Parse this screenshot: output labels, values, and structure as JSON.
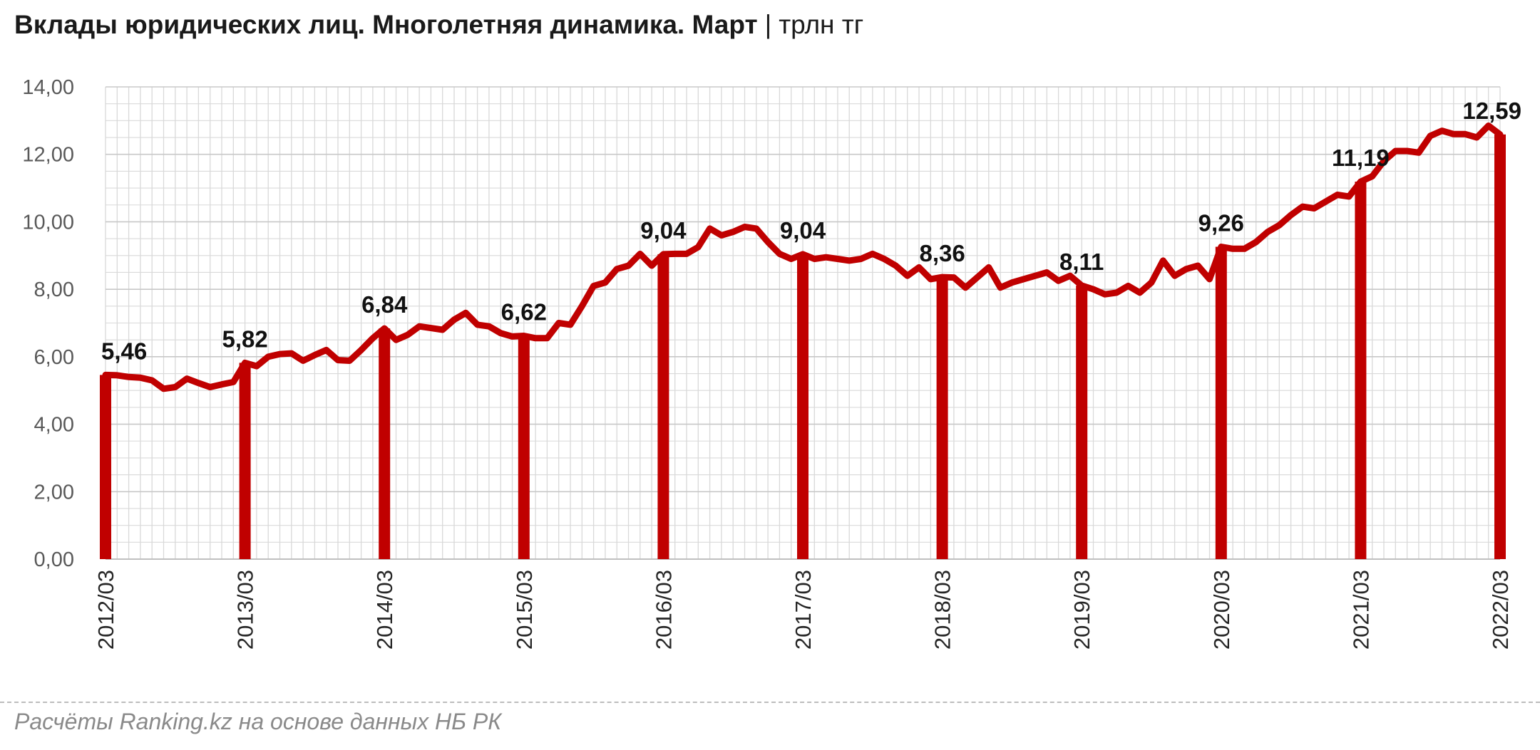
{
  "chart_data": {
    "type": "line",
    "title": "Вклады юридических лиц. Многолетняя динамика. Март",
    "separator": "|",
    "unit": "трлн тг",
    "ylim": [
      0,
      14
    ],
    "yticks": [
      "0,00",
      "2,00",
      "4,00",
      "6,00",
      "8,00",
      "10,00",
      "12,00",
      "14,00"
    ],
    "grid": true,
    "legend": "none",
    "colors": {
      "line": "#c00000",
      "bars": "#c00000",
      "grid": "#d9d9d9"
    },
    "x_tick_labels": [
      "2012/03",
      "2013/03",
      "2014/03",
      "2015/03",
      "2016/03",
      "2017/03",
      "2018/03",
      "2019/03",
      "2020/03",
      "2021/03",
      "2022/03"
    ],
    "bars": {
      "categories": [
        "2012/03",
        "2013/03",
        "2014/03",
        "2015/03",
        "2016/03",
        "2017/03",
        "2018/03",
        "2019/03",
        "2020/03",
        "2021/03",
        "2022/03"
      ],
      "values": [
        5.46,
        5.82,
        6.84,
        6.62,
        9.04,
        9.04,
        8.36,
        8.11,
        9.26,
        11.19,
        12.59
      ],
      "labels": [
        "5,46",
        "5,82",
        "6,84",
        "6,62",
        "9,04",
        "9,04",
        "8,36",
        "8,11",
        "9,26",
        "11,19",
        "12,59"
      ]
    },
    "series": [
      {
        "values": [
          5.46,
          5.45,
          5.4,
          5.38,
          5.3,
          5.05,
          5.1,
          5.35,
          5.22,
          5.1,
          5.18,
          5.25,
          5.82,
          5.72,
          6.0,
          6.08,
          6.1,
          5.88,
          6.05,
          6.2,
          5.9,
          5.88,
          6.2,
          6.55,
          6.84,
          6.5,
          6.65,
          6.9,
          6.85,
          6.8,
          7.1,
          7.3,
          6.95,
          6.9,
          6.7,
          6.6,
          6.62,
          6.55,
          6.55,
          7.0,
          6.95,
          7.5,
          8.1,
          8.2,
          8.6,
          8.7,
          9.05,
          8.7,
          9.04,
          9.05,
          9.05,
          9.25,
          9.8,
          9.6,
          9.7,
          9.85,
          9.8,
          9.4,
          9.05,
          8.9,
          9.04,
          8.9,
          8.95,
          8.9,
          8.85,
          8.9,
          9.05,
          8.9,
          8.7,
          8.4,
          8.65,
          8.3,
          8.36,
          8.35,
          8.05,
          8.35,
          8.65,
          8.05,
          8.2,
          8.3,
          8.4,
          8.5,
          8.25,
          8.4,
          8.11,
          8.0,
          7.85,
          7.9,
          8.1,
          7.9,
          8.2,
          8.85,
          8.4,
          8.6,
          8.7,
          8.3,
          9.26,
          9.2,
          9.2,
          9.4,
          9.7,
          9.9,
          10.2,
          10.45,
          10.4,
          10.6,
          10.8,
          10.75,
          11.19,
          11.35,
          11.8,
          12.1,
          12.1,
          12.05,
          12.55,
          12.7,
          12.6,
          12.6,
          12.5,
          12.85,
          12.59
        ]
      }
    ]
  },
  "footer": {
    "source": "Расчёты Ranking.kz на основе данных НБ РК"
  }
}
